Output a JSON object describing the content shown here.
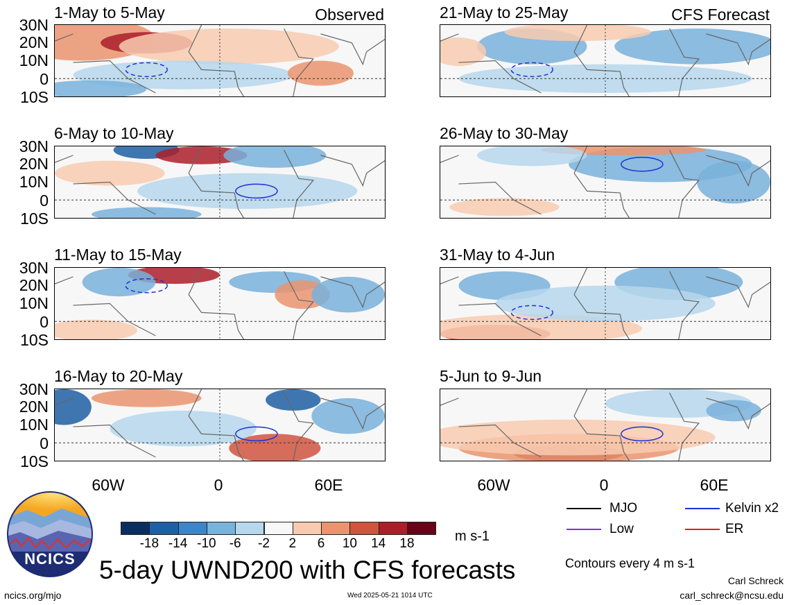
{
  "panels": [
    {
      "id": "p1",
      "title": "1-May to 5-May",
      "label": "Observed"
    },
    {
      "id": "p2",
      "title": "6-May to 10-May",
      "label": ""
    },
    {
      "id": "p3",
      "title": "11-May to 15-May",
      "label": ""
    },
    {
      "id": "p4",
      "title": "16-May to 20-May",
      "label": ""
    },
    {
      "id": "p5",
      "title": "21-May to 25-May",
      "label": "CFS Forecast"
    },
    {
      "id": "p6",
      "title": "26-May to 30-May",
      "label": ""
    },
    {
      "id": "p7",
      "title": "31-May to 4-Jun",
      "label": ""
    },
    {
      "id": "p8",
      "title": "5-Jun to 9-Jun",
      "label": ""
    }
  ],
  "lat_labels": [
    "30N",
    "20N",
    "10N",
    "0",
    "10S"
  ],
  "lon_labels": [
    "60W",
    "0",
    "60E"
  ],
  "colorbar": {
    "ticks": [
      "-18",
      "-14",
      "-10",
      "-6",
      "-2",
      "2",
      "6",
      "10",
      "14",
      "18"
    ],
    "colors": [
      "#0a2f5e",
      "#1f5fa3",
      "#3d85c6",
      "#79b2da",
      "#b6d7ec",
      "#f7f7f7",
      "#f8cbb0",
      "#ea9470",
      "#d0533f",
      "#ab1e2a",
      "#680318"
    ],
    "units": "m s-1"
  },
  "legend": [
    {
      "label": "MJO",
      "color": "#000000"
    },
    {
      "label": "Kelvin x2",
      "color": "#1f2fd8"
    },
    {
      "label": "Low",
      "color": "#8a2be2"
    },
    {
      "label": "ER",
      "color": "#e0201c"
    }
  ],
  "contour_note": "Contours every 4 m s-1",
  "main_title": "5-day UWND200 with CFS forecasts",
  "logo_text": "NCICS",
  "footer_left": "ncics.org/mjo",
  "footer_center": "Wed 2025-05-21 1014 UTC",
  "author_name": "Carl Schreck",
  "author_email": "carl_schreck@ncsu.edu"
}
